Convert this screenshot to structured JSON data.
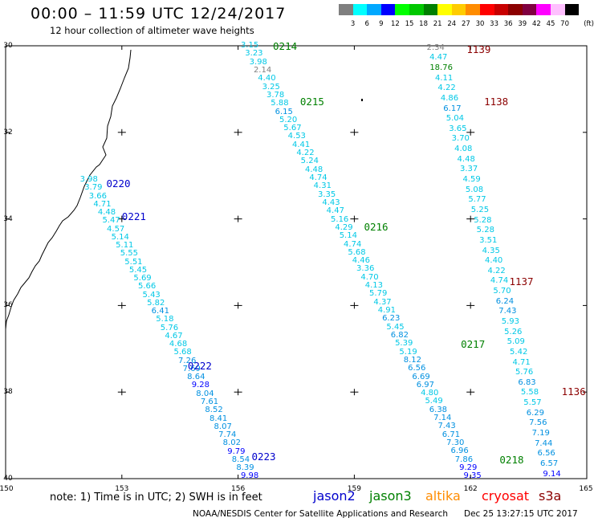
{
  "title": "00:00 – 11:59 UTC 12/24/2017",
  "subtitle": "12 hour collection of altimeter wave heights",
  "legend": {
    "unit": "(ft)",
    "bins": [
      {
        "label": "3",
        "color": "#7f7f7f"
      },
      {
        "label": "6",
        "color": "#00ffff"
      },
      {
        "label": "9",
        "color": "#00a8ff"
      },
      {
        "label": "12",
        "color": "#0000ff"
      },
      {
        "label": "15",
        "color": "#00ff00"
      },
      {
        "label": "18",
        "color": "#00c800"
      },
      {
        "label": "21",
        "color": "#008000"
      },
      {
        "label": "24",
        "color": "#ffff00"
      },
      {
        "label": "27",
        "color": "#ffcc00"
      },
      {
        "label": "30",
        "color": "#ff8c00"
      },
      {
        "label": "33",
        "color": "#ff0000"
      },
      {
        "label": "36",
        "color": "#c80000"
      },
      {
        "label": "39",
        "color": "#8b0000"
      },
      {
        "label": "42",
        "color": "#800040"
      },
      {
        "label": "45",
        "color": "#ff00ff"
      },
      {
        "label": "70",
        "color": "#ffc0ff"
      },
      {
        "label": "",
        "color": "#000000"
      }
    ]
  },
  "map": {
    "lon_range": [
      150,
      165
    ],
    "lat_range": [
      -40,
      -30
    ],
    "lon_ticks": [
      "150",
      "153",
      "156",
      "159",
      "162",
      "165"
    ],
    "lat_ticks": [
      "30",
      "32",
      "34",
      "36",
      "38",
      "40"
    ]
  },
  "pass_labels": [
    {
      "text": "0214",
      "lon": 156.9,
      "lat": -30.02,
      "color": "#008000"
    },
    {
      "text": "0215",
      "lon": 157.6,
      "lat": -31.3,
      "color": "#008000"
    },
    {
      "text": "0216",
      "lon": 159.25,
      "lat": -34.2,
      "color": "#008000"
    },
    {
      "text": "0217",
      "lon": 161.75,
      "lat": -36.9,
      "color": "#008000"
    },
    {
      "text": "0218",
      "lon": 162.75,
      "lat": -39.57,
      "color": "#008000"
    },
    {
      "text": "0220",
      "lon": 152.6,
      "lat": -33.2,
      "color": "#0000cc"
    },
    {
      "text": "0221",
      "lon": 153.0,
      "lat": -33.95,
      "color": "#0000cc"
    },
    {
      "text": "0222",
      "lon": 154.7,
      "lat": -37.4,
      "color": "#0000cc"
    },
    {
      "text": "0223",
      "lon": 156.35,
      "lat": -39.5,
      "color": "#0000cc"
    },
    {
      "text": "1139",
      "lon": 161.9,
      "lat": -30.1,
      "color": "#8b0000"
    },
    {
      "text": "1138",
      "lon": 162.35,
      "lat": -31.3,
      "color": "#8b0000"
    },
    {
      "text": "1137",
      "lon": 163.0,
      "lat": -35.45,
      "color": "#8b0000"
    },
    {
      "text": "1136",
      "lon": 164.35,
      "lat": -38.0,
      "color": "#8b0000"
    }
  ],
  "tracks": [
    {
      "name": "",
      "start": [
        152.15,
        -33.1
      ],
      "end": [
        156.3,
        -39.95
      ],
      "values": [
        "3.98",
        "3.79",
        "3.66",
        "4.71",
        "4.48",
        "5.47",
        "4.57",
        "5.14",
        "5.11",
        "5.55",
        "5.51",
        "5.45",
        "5.69",
        "5.66",
        "5.43",
        "5.82",
        "6.41",
        "5.18",
        "5.76",
        "4.67",
        "4.68",
        "5.68",
        "7.26",
        "7.69",
        "8.64",
        "9.28",
        "8.04",
        "7.61",
        "8.52",
        "8.41",
        "8.07",
        "7.74",
        "8.02",
        "9.79",
        "8.54",
        "8.39",
        "9.98"
      ]
    },
    {
      "name": "",
      "start": [
        156.3,
        -30.0
      ],
      "end": [
        162.05,
        -39.95
      ],
      "values": [
        "3.15",
        "3.23",
        "3.98",
        "2.14",
        "4.40",
        "3.25",
        "3.78",
        "5.88",
        "6.15",
        "5.20",
        "5.67",
        "4.53",
        "4.41",
        "4.22",
        "5.24",
        "4.48",
        "4.74",
        "4.31",
        "3.35",
        "4.43",
        "4.47",
        "5.16",
        "4.29",
        "5.14",
        "4.74",
        "5.68",
        "4.46",
        "3.36",
        "4.70",
        "4.13",
        "5.79",
        "4.37",
        "4.91",
        "6.23",
        "5.45",
        "6.82",
        "5.39",
        "5.19",
        "8.12",
        "6.56",
        "6.69",
        "6.97",
        "4.80",
        "5.49",
        "6.38",
        "7.14",
        "7.43",
        "6.71",
        "7.30",
        "6.96",
        "7.86",
        "9.29",
        "9.35"
      ]
    },
    {
      "name": "",
      "start": [
        161.1,
        -30.05
      ],
      "end": [
        164.1,
        -39.9
      ],
      "values": [
        "2.34",
        "4.47",
        "18.76",
        "4.11",
        "4.22",
        "4.86",
        "6.17",
        "5.04",
        "3.65",
        "3.70",
        "4.08",
        "4.48",
        "3.37",
        "4.59",
        "5.08",
        "5.77",
        "5.25",
        "5.28",
        "5.28",
        "3.51",
        "4.35",
        "4.40",
        "4.22",
        "4.74",
        "5.70",
        "6.24",
        "7.43",
        "5.93",
        "5.26",
        "5.09",
        "5.42",
        "4.71",
        "5.76",
        "6.83",
        "5.58",
        "5.57",
        "6.29",
        "7.56",
        "7.19",
        "7.44",
        "6.56",
        "6.57",
        "9.14"
      ]
    }
  ],
  "note": "note: 1) Time is in UTC; 2) SWH is in feet",
  "satellites": [
    {
      "name": "jason2",
      "color": "#0000cc"
    },
    {
      "name": "jason3",
      "color": "#008000"
    },
    {
      "name": "altika",
      "color": "#ff8c00"
    },
    {
      "name": "cryosat",
      "color": "#ff0000"
    },
    {
      "name": "s3a",
      "color": "#8b0000"
    }
  ],
  "credit": "NOAA/NESDIS Center for Satellite Applications and Research",
  "timestamp": "Dec 25 13:27:15 UTC 2017"
}
